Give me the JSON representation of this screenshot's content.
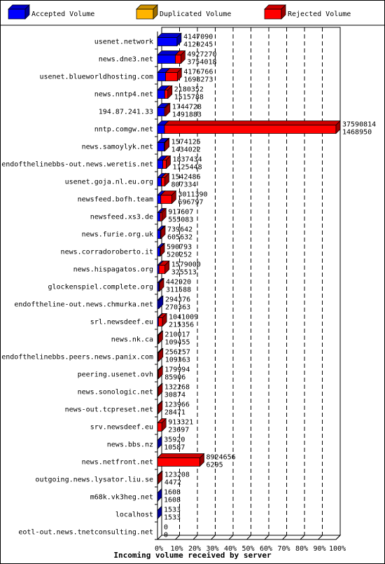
{
  "legend": [
    {
      "name": "Accepted Volume",
      "color": "#0000ff"
    },
    {
      "name": "Duplicated Volume",
      "color": "#ffb400"
    },
    {
      "name": "Rejected Volume",
      "color": "#ff0000"
    }
  ],
  "chart_data": {
    "type": "bar",
    "orientation": "horizontal",
    "xlabel": "Incoming volume received by server",
    "xticks": [
      "0%",
      "10%",
      "20%",
      "30%",
      "40%",
      "50%",
      "60%",
      "70%",
      "80%",
      "90%",
      "100%"
    ],
    "xlim": [
      0,
      100
    ],
    "grid": true,
    "legend_position": "top",
    "rows": [
      {
        "server": "usenet.network",
        "total": "4147090",
        "accepted": "4120245",
        "t": 4147090,
        "a": 4120245,
        "d": 0
      },
      {
        "server": "news.dne3.net",
        "total": "4927270",
        "accepted": "3754018",
        "t": 4927270,
        "a": 3754018,
        "d": 0
      },
      {
        "server": "usenet.blueworldhosting.com",
        "total": "4176766",
        "accepted": "1698273",
        "t": 4176766,
        "a": 1698273,
        "d": 0
      },
      {
        "server": "news.nntp4.net",
        "total": "2180352",
        "accepted": "1515788",
        "t": 2180352,
        "a": 1515788,
        "d": 0
      },
      {
        "server": "194.87.241.33",
        "total": "1744728",
        "accepted": "1491883",
        "t": 1744728,
        "a": 1491883,
        "d": 0
      },
      {
        "server": "nntp.comgw.net",
        "total": "37590814",
        "accepted": "1468950",
        "t": 37590814,
        "a": 1468950,
        "d": 0
      },
      {
        "server": "news.samoylyk.net",
        "total": "1574125",
        "accepted": "1434022",
        "t": 1574125,
        "a": 1434022,
        "d": 0
      },
      {
        "server": "endofthelinebbs-out.news.weretis.net",
        "total": "1837434",
        "accepted": "1125448",
        "t": 1837434,
        "a": 1125448,
        "d": 0
      },
      {
        "server": "usenet.goja.nl.eu.org",
        "total": "1542486",
        "accepted": "807334",
        "t": 1542486,
        "a": 807334,
        "d": 30000
      },
      {
        "server": "newsfeed.bofh.team",
        "total": "3011390",
        "accepted": "696797",
        "t": 3011390,
        "a": 696797,
        "d": 0
      },
      {
        "server": "newsfeed.xs3.de",
        "total": "917607",
        "accepted": "555083",
        "t": 917607,
        "a": 555083,
        "d": 0
      },
      {
        "server": "news.furie.org.uk",
        "total": "739642",
        "accepted": "605632",
        "t": 739642,
        "a": 605632,
        "d": 0
      },
      {
        "server": "news.corradoroberto.it",
        "total": "590793",
        "accepted": "520252",
        "t": 590793,
        "a": 520252,
        "d": 0
      },
      {
        "server": "news.hispagatos.org",
        "total": "1579000",
        "accepted": "325513",
        "t": 1579000,
        "a": 325513,
        "d": 0
      },
      {
        "server": "glockenspiel.complete.org",
        "total": "442920",
        "accepted": "311588",
        "t": 442920,
        "a": 311588,
        "d": 0
      },
      {
        "server": "endoftheline-out.news.chmurka.net",
        "total": "294376",
        "accepted": "270363",
        "t": 294376,
        "a": 270363,
        "d": 0
      },
      {
        "server": "srl.newsdeef.eu",
        "total": "1041009",
        "accepted": "215356",
        "t": 1041009,
        "a": 215356,
        "d": 0
      },
      {
        "server": "news.nk.ca",
        "total": "210017",
        "accepted": "109455",
        "t": 210017,
        "a": 109455,
        "d": 0
      },
      {
        "server": "endofthelinebbs.peers.news.panix.com",
        "total": "256257",
        "accepted": "109363",
        "t": 256257,
        "a": 109363,
        "d": 0
      },
      {
        "server": "peering.usenet.ovh",
        "total": "179994",
        "accepted": "85906",
        "t": 179994,
        "a": 85906,
        "d": 0
      },
      {
        "server": "news.sonologic.net",
        "total": "132268",
        "accepted": "30874",
        "t": 132268,
        "a": 30874,
        "d": 0
      },
      {
        "server": "news-out.tcpreset.net",
        "total": "123966",
        "accepted": "28471",
        "t": 123966,
        "a": 28471,
        "d": 0
      },
      {
        "server": "srv.newsdeef.eu",
        "total": "913321",
        "accepted": "23697",
        "t": 913321,
        "a": 23697,
        "d": 0
      },
      {
        "server": "news.bbs.nz",
        "total": "35920",
        "accepted": "10587",
        "t": 35920,
        "a": 10587,
        "d": 0
      },
      {
        "server": "news.netfront.net",
        "total": "8924656",
        "accepted": "6295",
        "t": 8924656,
        "a": 6295,
        "d": 0
      },
      {
        "server": "outgoing.news.lysator.liu.se",
        "total": "123208",
        "accepted": "4472",
        "t": 123208,
        "a": 4472,
        "d": 0
      },
      {
        "server": "m68k.vk3heg.net",
        "total": "1608",
        "accepted": "1608",
        "t": 1608,
        "a": 1608,
        "d": 0
      },
      {
        "server": "localhost",
        "total": "1533",
        "accepted": "1533",
        "t": 1533,
        "a": 1533,
        "d": 0
      },
      {
        "server": "eotl-out.news.tnetconsulting.net",
        "total": "0",
        "accepted": "0",
        "t": 0,
        "a": 0,
        "d": 0
      }
    ]
  }
}
